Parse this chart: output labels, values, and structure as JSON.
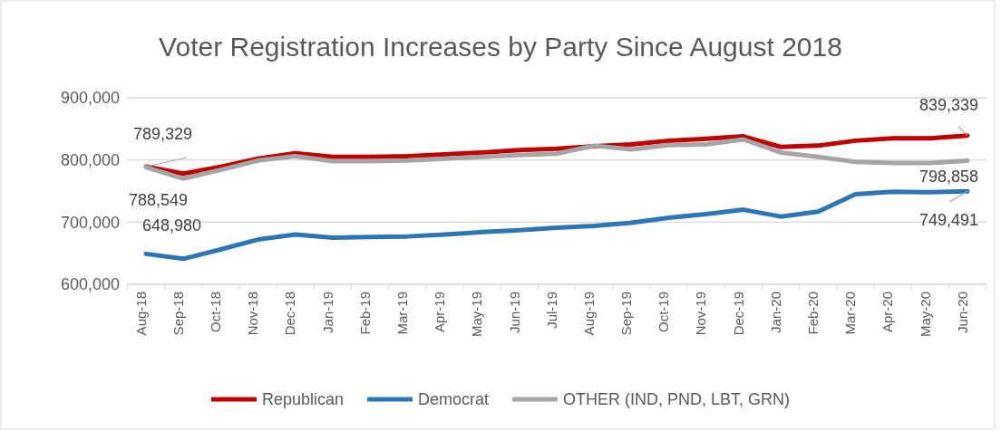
{
  "chart_data": {
    "type": "line",
    "title": "Voter Registration Increases by Party Since August 2018",
    "categories": [
      "Aug-18",
      "Sep-18",
      "Oct-18",
      "Nov-18",
      "Dec-18",
      "Jan-19",
      "Feb-19",
      "Mar-19",
      "Apr-19",
      "May-19",
      "Jun-19",
      "Jul-19",
      "Aug-19",
      "Sep-19",
      "Oct-19",
      "Nov-19",
      "Dec-19",
      "Jan-20",
      "Feb-20",
      "Mar-20",
      "Apr-20",
      "May-20",
      "Jun-20"
    ],
    "series": [
      {
        "name": "Republican",
        "color": "#c00000",
        "values": [
          789329,
          778000,
          789000,
          802000,
          811000,
          805000,
          805000,
          806000,
          809000,
          812000,
          816000,
          818000,
          822000,
          825000,
          831000,
          834000,
          838000,
          821000,
          823000,
          831000,
          835000,
          835000,
          839339
        ],
        "value_labels": [
          "789,329",
          null,
          null,
          null,
          null,
          null,
          null,
          null,
          null,
          null,
          null,
          null,
          null,
          null,
          null,
          null,
          null,
          null,
          null,
          null,
          null,
          null,
          "839,339"
        ]
      },
      {
        "name": "Democrat",
        "color": "#2e75b6",
        "values": [
          648980,
          641000,
          656000,
          672000,
          680000,
          675000,
          676000,
          677000,
          680000,
          684000,
          687000,
          691000,
          694000,
          699000,
          707000,
          713000,
          720000,
          709000,
          717000,
          745000,
          749000,
          748000,
          749491
        ],
        "value_labels": [
          "648,980",
          null,
          null,
          null,
          null,
          null,
          null,
          null,
          null,
          null,
          null,
          null,
          null,
          null,
          null,
          null,
          null,
          null,
          null,
          null,
          null,
          null,
          "749,491"
        ]
      },
      {
        "name": "OTHER (IND, PND, LBT, GRN)",
        "color": "#a5a5a5",
        "values": [
          788549,
          770000,
          784000,
          799000,
          806000,
          798000,
          798000,
          799000,
          802000,
          805000,
          808000,
          810000,
          823000,
          817000,
          824000,
          825000,
          833000,
          812000,
          805000,
          797000,
          795000,
          795000,
          798858
        ],
        "value_labels": [
          "788,549",
          null,
          null,
          null,
          null,
          null,
          null,
          null,
          null,
          null,
          null,
          null,
          null,
          null,
          null,
          null,
          null,
          null,
          null,
          null,
          null,
          null,
          "798,858"
        ]
      }
    ],
    "ylim": [
      600000,
      900000
    ],
    "yticks": [
      {
        "value": 600000,
        "label": "600,000"
      },
      {
        "value": 700000,
        "label": "700,000"
      },
      {
        "value": 800000,
        "label": "800,000"
      },
      {
        "value": 900000,
        "label": "900,000"
      }
    ],
    "grid": "y",
    "legend": "bottom",
    "marker": "none",
    "line_style": "solid"
  }
}
